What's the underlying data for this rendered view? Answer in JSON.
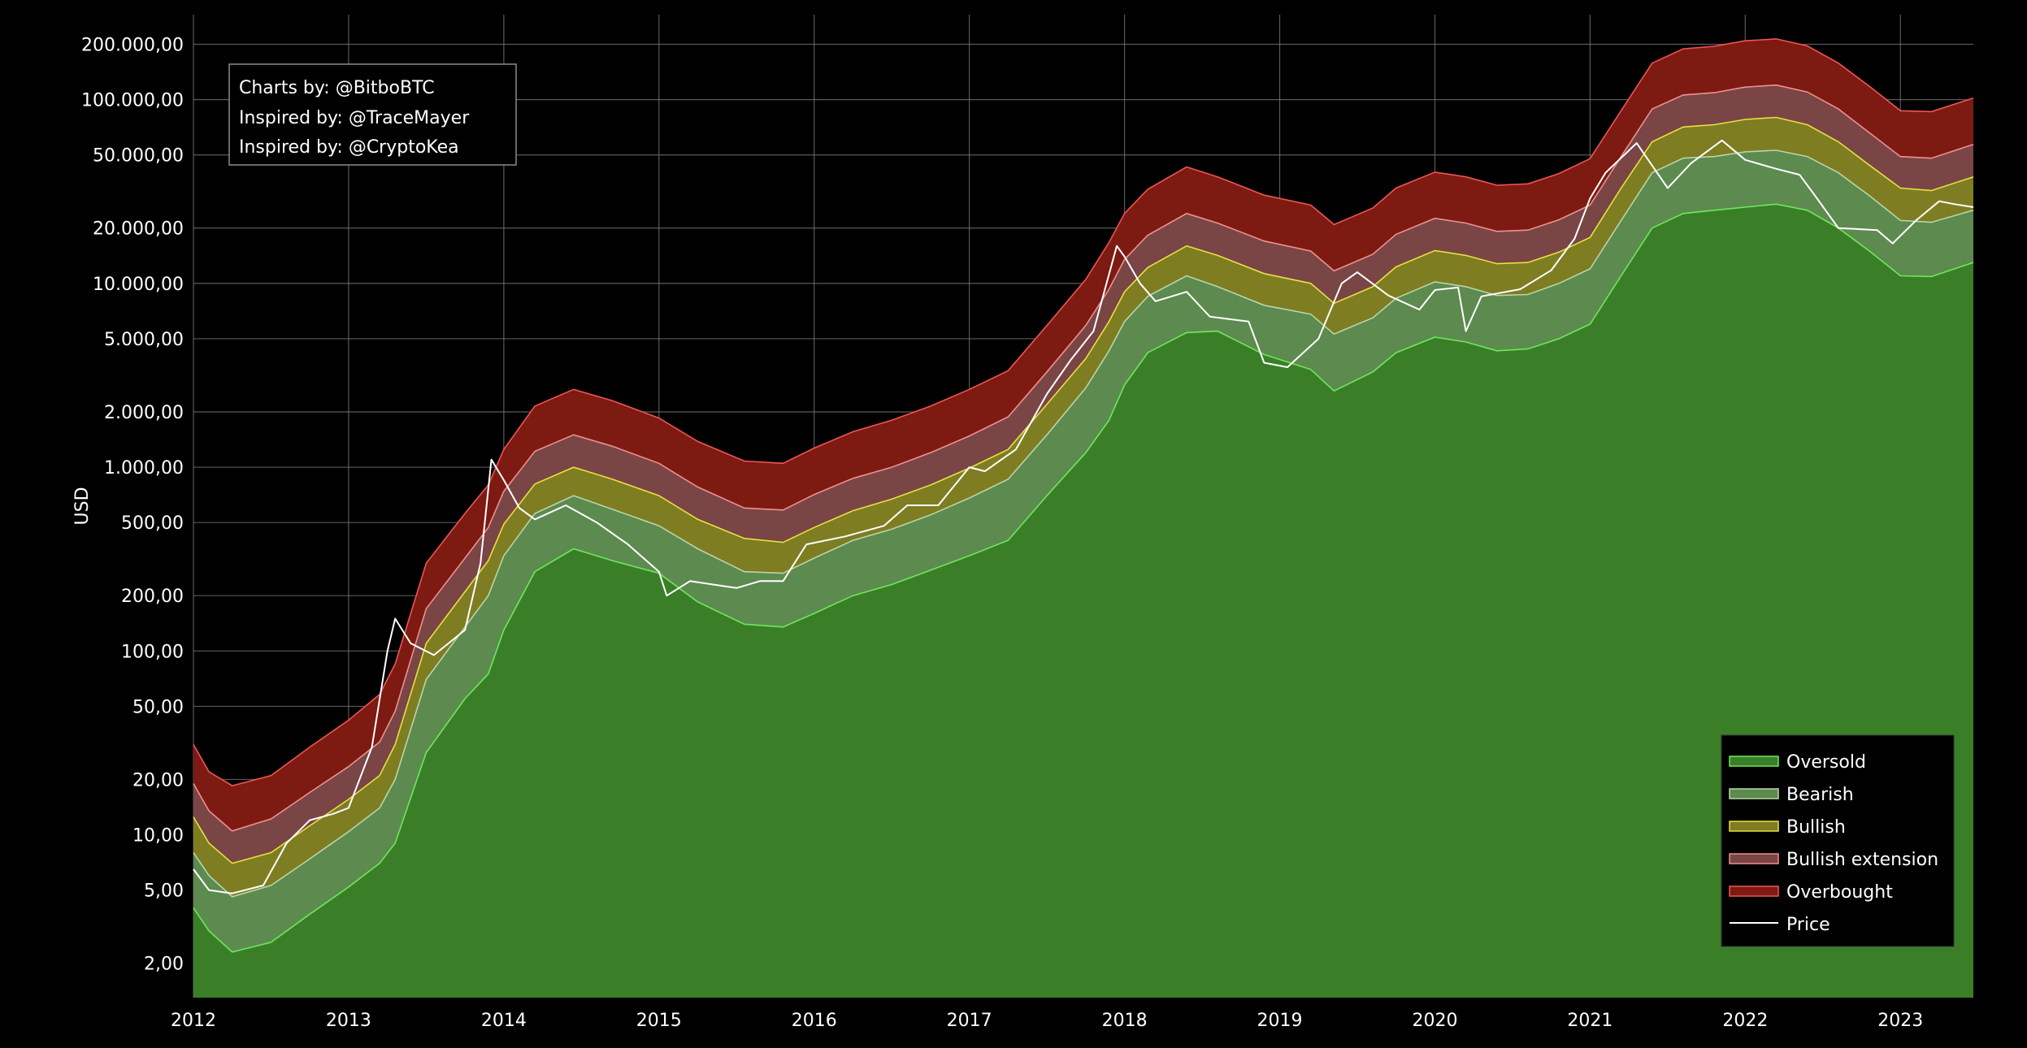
{
  "chart_data": {
    "type": "area",
    "ylabel": "USD",
    "yscale": "log",
    "ylim": [
      1.3,
      290000
    ],
    "xlim": [
      2012.0,
      2023.47
    ],
    "grid": true,
    "legend_position": "bottom-right",
    "annotation_lines": [
      "Charts by: @BitboBTC",
      "Inspired by: @TraceMayer",
      "Inspired by: @CryptoKea"
    ],
    "x_ticks": [
      {
        "value": 2012,
        "label": "2012"
      },
      {
        "value": 2013,
        "label": "2013"
      },
      {
        "value": 2014,
        "label": "2014"
      },
      {
        "value": 2015,
        "label": "2015"
      },
      {
        "value": 2016,
        "label": "2016"
      },
      {
        "value": 2017,
        "label": "2017"
      },
      {
        "value": 2018,
        "label": "2018"
      },
      {
        "value": 2019,
        "label": "2019"
      },
      {
        "value": 2020,
        "label": "2020"
      },
      {
        "value": 2021,
        "label": "2021"
      },
      {
        "value": 2022,
        "label": "2022"
      },
      {
        "value": 2023,
        "label": "2023"
      }
    ],
    "y_ticks": [
      {
        "value": 2,
        "label": "2,00"
      },
      {
        "value": 5,
        "label": "5,00"
      },
      {
        "value": 10,
        "label": "10,00"
      },
      {
        "value": 20,
        "label": "20,00"
      },
      {
        "value": 50,
        "label": "50,00"
      },
      {
        "value": 100,
        "label": "100,00"
      },
      {
        "value": 200,
        "label": "200,00"
      },
      {
        "value": 500,
        "label": "500,00"
      },
      {
        "value": 1000,
        "label": "1.000,00"
      },
      {
        "value": 2000,
        "label": "2.000,00"
      },
      {
        "value": 5000,
        "label": "5.000,00"
      },
      {
        "value": 10000,
        "label": "10.000,00"
      },
      {
        "value": 20000,
        "label": "20.000,00"
      },
      {
        "value": 50000,
        "label": "50.000,00"
      },
      {
        "value": 100000,
        "label": "100.000,00"
      },
      {
        "value": 200000,
        "label": "200.000,00"
      }
    ],
    "x": [
      2012.0,
      2012.1,
      2012.25,
      2012.5,
      2012.75,
      2013.0,
      2013.2,
      2013.3,
      2013.5,
      2013.75,
      2013.9,
      2014.0,
      2014.2,
      2014.45,
      2014.7,
      2015.0,
      2015.25,
      2015.55,
      2015.8,
      2016.0,
      2016.25,
      2016.5,
      2016.75,
      2017.0,
      2017.25,
      2017.5,
      2017.75,
      2017.9,
      2018.0,
      2018.15,
      2018.4,
      2018.6,
      2018.9,
      2019.2,
      2019.35,
      2019.6,
      2019.75,
      2020.0,
      2020.2,
      2020.4,
      2020.6,
      2020.8,
      2021.0,
      2021.2,
      2021.4,
      2021.6,
      2021.8,
      2022.0,
      2022.2,
      2022.4,
      2022.6,
      2022.8,
      2023.0,
      2023.2,
      2023.47
    ],
    "series": [
      {
        "name": "Oversold",
        "color": "#3a7f28",
        "edge": "#6ee85a",
        "values": [
          4.0,
          3.0,
          2.3,
          2.6,
          3.7,
          5.2,
          7.0,
          9.0,
          28,
          55,
          75,
          130,
          270,
          360,
          310,
          265,
          185,
          140,
          135,
          160,
          200,
          230,
          275,
          330,
          400,
          700,
          1200,
          1800,
          2800,
          4200,
          5400,
          5500,
          4100,
          3400,
          2600,
          3300,
          4200,
          5100,
          4800,
          4300,
          4400,
          5000,
          6000,
          11000,
          20000,
          24000,
          25000,
          26000,
          27000,
          25000,
          20000,
          15000,
          11000,
          10900,
          13000
        ]
      },
      {
        "name": "Bearish",
        "color": "#5d8a4f",
        "edge": "#b8d6a8",
        "values": [
          8.0,
          6.0,
          4.6,
          5.3,
          7.4,
          10.4,
          14,
          20,
          70,
          135,
          200,
          330,
          560,
          700,
          590,
          480,
          360,
          270,
          265,
          320,
          400,
          460,
          550,
          680,
          860,
          1500,
          2700,
          4300,
          6200,
          8500,
          11000,
          9600,
          7600,
          6800,
          5300,
          6500,
          8300,
          10200,
          9600,
          8600,
          8700,
          10000,
          12000,
          22000,
          40000,
          48000,
          49000,
          52000,
          53000,
          49000,
          40000,
          30000,
          22000,
          21500,
          25000
        ]
      },
      {
        "name": "Bullish",
        "color": "#7e7d22",
        "edge": "#e8e040",
        "values": [
          12.5,
          9.0,
          7.0,
          8.0,
          11.2,
          15.6,
          21,
          31,
          110,
          210,
          310,
          490,
          810,
          1000,
          860,
          700,
          520,
          410,
          390,
          470,
          580,
          670,
          800,
          990,
          1250,
          2200,
          3900,
          6200,
          9000,
          12200,
          16000,
          14200,
          11300,
          10000,
          7800,
          9600,
          12300,
          15100,
          14200,
          12800,
          13000,
          14800,
          17800,
          33000,
          59000,
          71000,
          73000,
          78000,
          80000,
          73000,
          59000,
          44000,
          33000,
          32000,
          38000
        ]
      },
      {
        "name": "Bullish extension",
        "color": "#7a4545",
        "edge": "#f09090",
        "values": [
          19,
          13.5,
          10.5,
          12.2,
          17,
          23.5,
          32,
          47,
          170,
          320,
          470,
          740,
          1220,
          1500,
          1300,
          1050,
          780,
          600,
          585,
          710,
          870,
          1000,
          1200,
          1480,
          1880,
          3300,
          5900,
          9300,
          13500,
          18300,
          24000,
          21300,
          17000,
          15000,
          11700,
          14400,
          18500,
          22600,
          21300,
          19200,
          19500,
          22200,
          26700,
          49000,
          89000,
          106000,
          109000,
          117000,
          120000,
          110000,
          89000,
          66000,
          49000,
          48000,
          57000
        ]
      },
      {
        "name": "Overbought",
        "color": "#7d1a12",
        "edge": "#f05555",
        "values": [
          31,
          22,
          18.5,
          21,
          30,
          42,
          58,
          85,
          300,
          560,
          800,
          1250,
          2150,
          2650,
          2300,
          1850,
          1380,
          1080,
          1050,
          1270,
          1560,
          1800,
          2150,
          2650,
          3350,
          5900,
          10500,
          16700,
          24000,
          32500,
          43000,
          38000,
          30200,
          26700,
          20900,
          25700,
          33000,
          40300,
          38000,
          34200,
          34800,
          39600,
          47700,
          87000,
          158000,
          189000,
          195000,
          209000,
          214000,
          196000,
          158000,
          118000,
          87000,
          86000,
          102000
        ]
      }
    ],
    "price": {
      "name": "Price",
      "color": "#ffffff",
      "x": [
        2012.0,
        2012.1,
        2012.25,
        2012.45,
        2012.6,
        2012.75,
        2012.9,
        2013.0,
        2013.15,
        2013.25,
        2013.3,
        2013.4,
        2013.55,
        2013.75,
        2013.85,
        2013.92,
        2014.0,
        2014.1,
        2014.2,
        2014.4,
        2014.6,
        2014.8,
        2015.0,
        2015.05,
        2015.2,
        2015.5,
        2015.65,
        2015.8,
        2015.95,
        2016.2,
        2016.45,
        2016.6,
        2016.8,
        2017.0,
        2017.1,
        2017.3,
        2017.5,
        2017.65,
        2017.8,
        2017.95,
        2018.0,
        2018.1,
        2018.2,
        2018.4,
        2018.55,
        2018.8,
        2018.9,
        2019.05,
        2019.25,
        2019.4,
        2019.5,
        2019.7,
        2019.9,
        2020.0,
        2020.15,
        2020.2,
        2020.3,
        2020.55,
        2020.75,
        2020.9,
        2021.0,
        2021.1,
        2021.3,
        2021.5,
        2021.65,
        2021.85,
        2022.0,
        2022.2,
        2022.35,
        2022.45,
        2022.6,
        2022.85,
        2022.95,
        2023.1,
        2023.25,
        2023.35,
        2023.47
      ],
      "y": [
        6.5,
        5.0,
        4.8,
        5.3,
        9.0,
        12.0,
        13.0,
        14.0,
        30,
        100,
        150,
        110,
        95,
        130,
        300,
        1100,
        850,
        600,
        520,
        620,
        500,
        380,
        270,
        200,
        240,
        220,
        240,
        240,
        380,
        420,
        480,
        620,
        620,
        1000,
        950,
        1250,
        2500,
        3800,
        5500,
        16000,
        14000,
        10000,
        8000,
        9000,
        6600,
        6200,
        3700,
        3500,
        5000,
        10000,
        11500,
        8600,
        7200,
        9200,
        9500,
        5500,
        8500,
        9300,
        11800,
        17500,
        29000,
        40000,
        58000,
        33000,
        45000,
        60000,
        47000,
        42000,
        39000,
        30000,
        20000,
        19500,
        16500,
        22000,
        28000,
        27000,
        26000
      ]
    }
  },
  "legend": {
    "items": [
      "Oversold",
      "Bearish",
      "Bullish",
      "Bullish extension",
      "Overbought",
      "Price"
    ]
  },
  "colors": {
    "background": "#000000",
    "grid": "#7f7f7f",
    "text": "#ffffff"
  }
}
